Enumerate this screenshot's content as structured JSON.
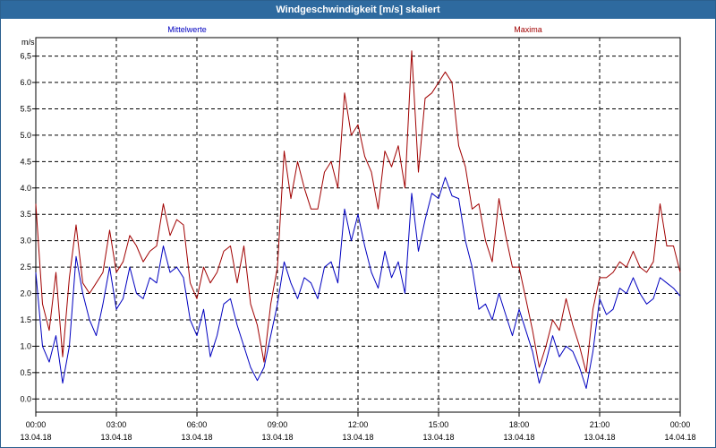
{
  "window": {
    "title": "Windgeschwindigkeit [m/s] skaliert"
  },
  "chart_data": {
    "type": "line",
    "title": "Windgeschwindigkeit [m/s] skaliert",
    "ylabel": "m/s",
    "xlabel": "",
    "ylim": [
      -0.25,
      6.85
    ],
    "xlim_hours": [
      0,
      24
    ],
    "grid": true,
    "legend_placement": "top",
    "y_ticks": [
      "0.0",
      "0.5",
      "1.0",
      "1.5",
      "2.0",
      "2.5",
      "3.0",
      "3.5",
      "4.0",
      "4.5",
      "5.0",
      "5.5",
      "6.0",
      "6,5"
    ],
    "y_tick_values": [
      0,
      0.5,
      1.0,
      1.5,
      2.0,
      2.5,
      3.0,
      3.5,
      4.0,
      4.5,
      5.0,
      5.5,
      6.0,
      6.5
    ],
    "x_ticks": [
      {
        "time": "00:00",
        "date": "13.04.18"
      },
      {
        "time": "03:00",
        "date": "13.04.18"
      },
      {
        "time": "06:00",
        "date": "13.04.18"
      },
      {
        "time": "09:00",
        "date": "13.04.18"
      },
      {
        "time": "12:00",
        "date": "13.04.18"
      },
      {
        "time": "15:00",
        "date": "13.04.18"
      },
      {
        "time": "18:00",
        "date": "13.04.18"
      },
      {
        "time": "21:00",
        "date": "13.04.18"
      },
      {
        "time": "00:00",
        "date": "14.04.18"
      }
    ],
    "x_hours": [
      0,
      0.25,
      0.5,
      0.75,
      1,
      1.25,
      1.5,
      1.75,
      2,
      2.25,
      2.5,
      2.75,
      3,
      3.25,
      3.5,
      3.75,
      4,
      4.25,
      4.5,
      4.75,
      5,
      5.25,
      5.5,
      5.75,
      6,
      6.25,
      6.5,
      6.75,
      7,
      7.25,
      7.5,
      7.75,
      8,
      8.25,
      8.5,
      8.75,
      9,
      9.25,
      9.5,
      9.75,
      10,
      10.25,
      10.5,
      10.75,
      11,
      11.25,
      11.5,
      11.75,
      12,
      12.25,
      12.5,
      12.75,
      13,
      13.25,
      13.5,
      13.75,
      14,
      14.25,
      14.5,
      14.75,
      15,
      15.25,
      15.5,
      15.75,
      16,
      16.25,
      16.5,
      16.75,
      17,
      17.25,
      17.5,
      17.75,
      18,
      18.25,
      18.5,
      18.75,
      19,
      19.25,
      19.5,
      19.75,
      20,
      20.25,
      20.5,
      20.75,
      21,
      21.25,
      21.5,
      21.75,
      22,
      22.25,
      22.5,
      22.75,
      23,
      23.25,
      23.5,
      23.75,
      24
    ],
    "series": [
      {
        "name": "Mittelwerte",
        "color": "#0000c0",
        "values": [
          2.4,
          1.0,
          0.7,
          1.2,
          0.3,
          1.0,
          2.7,
          2.0,
          1.5,
          1.2,
          1.8,
          2.5,
          1.7,
          1.9,
          2.5,
          2.0,
          1.9,
          2.3,
          2.2,
          2.9,
          2.4,
          2.5,
          2.3,
          1.5,
          1.2,
          1.7,
          0.8,
          1.2,
          1.8,
          1.9,
          1.4,
          1.0,
          0.6,
          0.35,
          0.6,
          1.2,
          1.8,
          2.6,
          2.2,
          1.9,
          2.3,
          2.2,
          1.9,
          2.5,
          2.6,
          2.2,
          3.6,
          3.0,
          3.5,
          2.9,
          2.4,
          2.1,
          2.8,
          2.3,
          2.6,
          2.0,
          3.9,
          2.8,
          3.4,
          3.9,
          3.8,
          4.2,
          3.85,
          3.8,
          3.0,
          2.5,
          1.7,
          1.8,
          1.5,
          2.0,
          1.6,
          1.2,
          1.7,
          1.3,
          0.9,
          0.3,
          0.7,
          1.2,
          0.8,
          1.0,
          0.9,
          0.6,
          0.2,
          0.9,
          1.9,
          1.6,
          1.7,
          2.1,
          2.0,
          2.3,
          2.0,
          1.8,
          1.9,
          2.3,
          2.2,
          2.1,
          1.95
        ]
      },
      {
        "name": "Maxima",
        "color": "#a00000",
        "values": [
          3.7,
          1.8,
          1.3,
          2.4,
          0.8,
          2.3,
          3.3,
          2.2,
          2.0,
          2.2,
          2.4,
          3.2,
          2.4,
          2.6,
          3.1,
          2.9,
          2.6,
          2.8,
          2.9,
          3.7,
          3.1,
          3.4,
          3.3,
          2.2,
          1.9,
          2.5,
          2.2,
          2.4,
          2.8,
          2.9,
          2.2,
          2.9,
          1.8,
          1.4,
          0.7,
          1.8,
          2.5,
          4.7,
          3.8,
          4.5,
          4.0,
          3.6,
          3.6,
          4.3,
          4.5,
          4.0,
          5.8,
          5.0,
          5.2,
          4.6,
          4.3,
          3.6,
          4.7,
          4.4,
          4.8,
          4.0,
          6.6,
          4.3,
          5.7,
          5.8,
          6.0,
          6.2,
          6.0,
          4.8,
          4.4,
          3.6,
          3.7,
          3.0,
          2.6,
          3.8,
          3.1,
          2.5,
          2.5,
          1.9,
          1.3,
          0.6,
          1.0,
          1.5,
          1.3,
          1.9,
          1.4,
          1.0,
          0.5,
          1.7,
          2.3,
          2.3,
          2.4,
          2.6,
          2.5,
          2.8,
          2.5,
          2.4,
          2.6,
          3.7,
          2.9,
          2.9,
          2.4
        ]
      }
    ]
  }
}
